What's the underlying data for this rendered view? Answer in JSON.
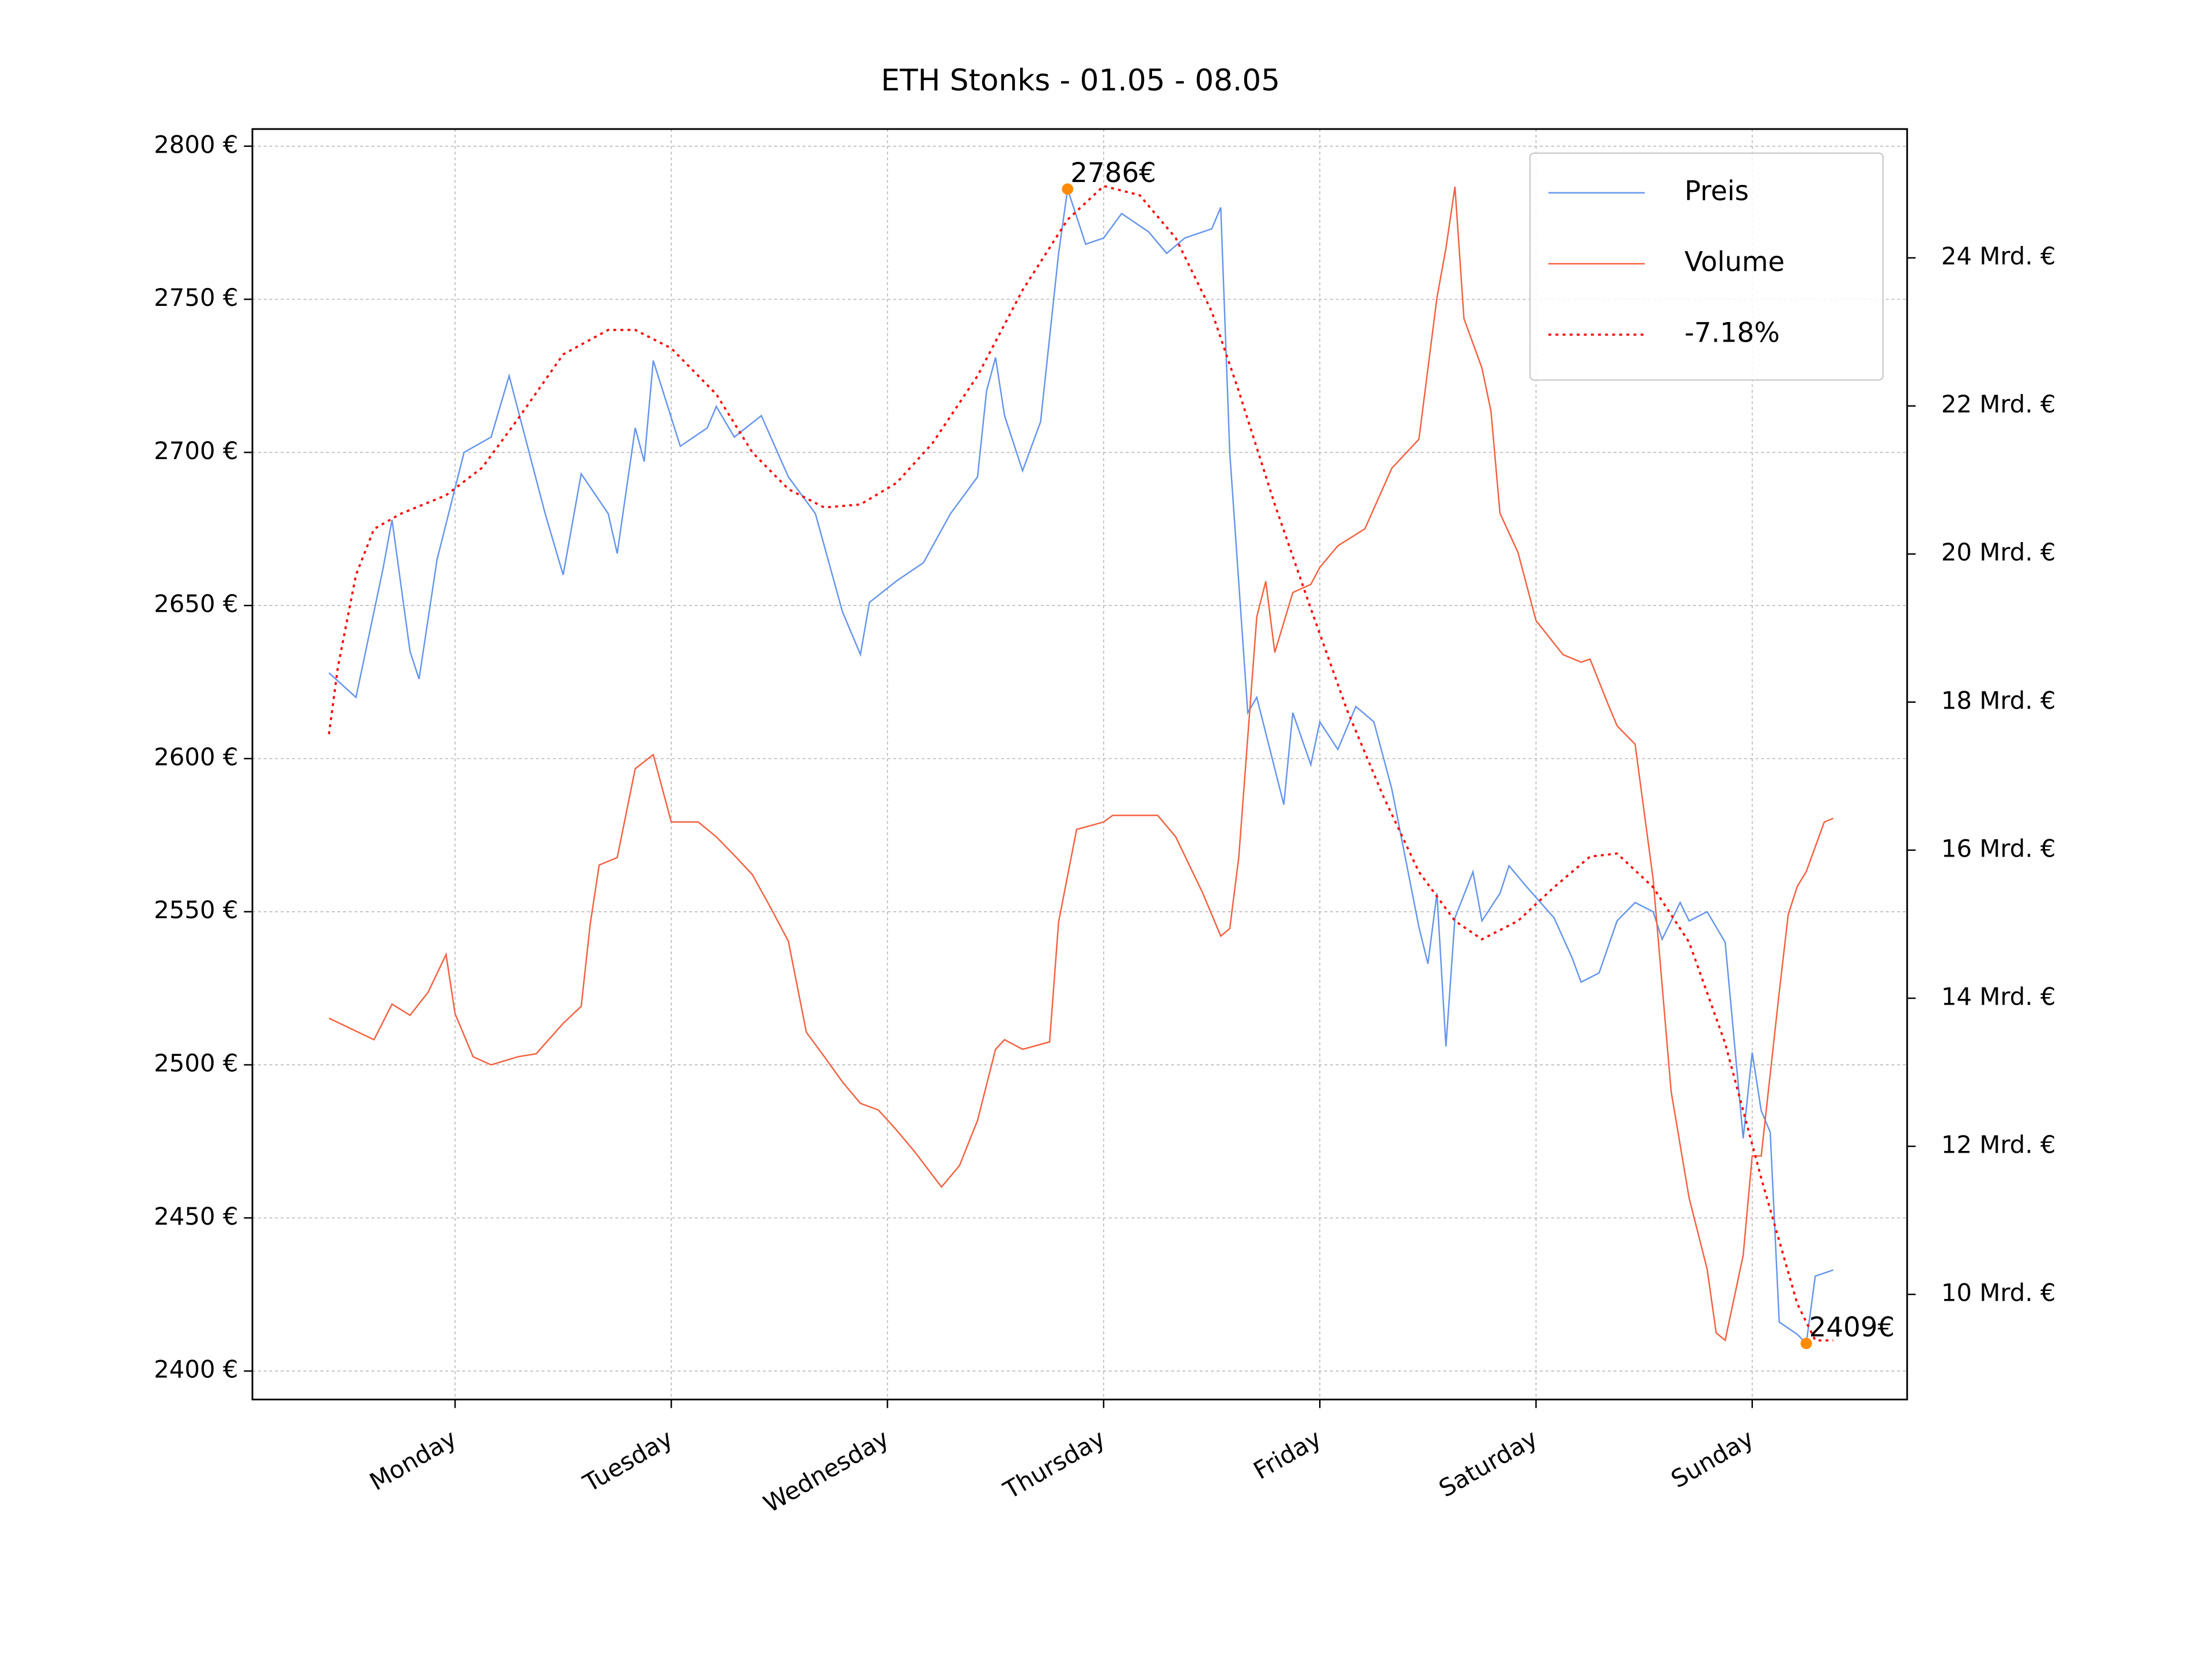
{
  "chart_data": {
    "type": "line",
    "title": "ETH Stonks - 01.05 - 08.05",
    "xlim": [
      -8.5,
      175.2
    ],
    "xticks": [
      {
        "value": 14,
        "label": "Monday"
      },
      {
        "value": 38,
        "label": "Tuesday"
      },
      {
        "value": 62,
        "label": "Wednesday"
      },
      {
        "value": 86,
        "label": "Thursday"
      },
      {
        "value": 110,
        "label": "Friday"
      },
      {
        "value": 134,
        "label": "Saturday"
      },
      {
        "value": 158,
        "label": "Sunday"
      }
    ],
    "ylim": [
      2390.7,
      2805.6
    ],
    "yticks": [
      {
        "value": 2400,
        "label": "2400 €"
      },
      {
        "value": 2450,
        "label": "2450 €"
      },
      {
        "value": 2500,
        "label": "2500 €"
      },
      {
        "value": 2550,
        "label": "2550 €"
      },
      {
        "value": 2600,
        "label": "2600 €"
      },
      {
        "value": 2650,
        "label": "2650 €"
      },
      {
        "value": 2700,
        "label": "2700 €"
      },
      {
        "value": 2750,
        "label": "2750 €"
      },
      {
        "value": 2800,
        "label": "2800 €"
      }
    ],
    "y2lim": [
      8.58,
      25.74
    ],
    "y2ticks": [
      {
        "value": 10,
        "label": "10 Mrd. €"
      },
      {
        "value": 12,
        "label": "12 Mrd. €"
      },
      {
        "value": 14,
        "label": "14 Mrd. €"
      },
      {
        "value": 16,
        "label": "16 Mrd. €"
      },
      {
        "value": 18,
        "label": "18 Mrd. €"
      },
      {
        "value": 20,
        "label": "20 Mrd. €"
      },
      {
        "value": 22,
        "label": "22 Mrd. €"
      },
      {
        "value": 24,
        "label": "24 Mrd. €"
      }
    ],
    "grid": true,
    "legend": "upper right",
    "series": [
      {
        "name": "Preis",
        "color": "#6495ed",
        "linestyle": "solid",
        "x": [
          0,
          3,
          6,
          7,
          9,
          10,
          12,
          15,
          18,
          20,
          24,
          26,
          28,
          31,
          32,
          34,
          35,
          36,
          39,
          42,
          43,
          45,
          48,
          51,
          54,
          57,
          59,
          60,
          63,
          66,
          69,
          72,
          73,
          74,
          75,
          77,
          79,
          81,
          82,
          84,
          86,
          88,
          91,
          93,
          95,
          98,
          99,
          100,
          102,
          103,
          106,
          107,
          109,
          110,
          112,
          114,
          116,
          118,
          121,
          122,
          123,
          124,
          125,
          127,
          128,
          130,
          131,
          133,
          136,
          138,
          139,
          141,
          143,
          145,
          147,
          148,
          150,
          151,
          153,
          155,
          157,
          158,
          159,
          160,
          161,
          163,
          164,
          165,
          167
        ],
        "values": [
          2628,
          2620,
          2662,
          2678,
          2635,
          2626,
          2665,
          2700,
          2705,
          2725,
          2680,
          2660,
          2693,
          2680,
          2667,
          2708,
          2697,
          2730,
          2702,
          2708,
          2715,
          2705,
          2712,
          2692,
          2680,
          2648,
          2634,
          2651,
          2658,
          2664,
          2680,
          2692,
          2720,
          2731,
          2712,
          2694,
          2710,
          2765,
          2786,
          2768,
          2770,
          2778,
          2772,
          2765,
          2770,
          2773,
          2780,
          2700,
          2615,
          2620,
          2585,
          2615,
          2598,
          2612,
          2603,
          2617,
          2612,
          2590,
          2545,
          2533,
          2556,
          2506,
          2548,
          2563,
          2547,
          2556,
          2565,
          2558,
          2548,
          2535,
          2527,
          2530,
          2547,
          2553,
          2550,
          2541,
          2553,
          2547,
          2550,
          2540,
          2476,
          2504,
          2485,
          2478,
          2416,
          2412,
          2409,
          2431,
          2433
        ]
      },
      {
        "name": "Volume",
        "color": "#f4603f",
        "linestyle": "solid",
        "axis": "y2",
        "x": [
          0,
          5,
          7,
          9,
          11,
          13,
          14,
          16,
          18,
          21,
          23,
          26,
          28,
          29,
          30,
          32,
          34,
          36,
          38,
          41,
          43,
          45,
          47,
          49,
          51,
          53,
          55,
          57,
          59,
          61,
          63,
          65,
          68,
          70,
          72,
          74,
          75,
          77,
          80,
          81,
          83,
          86,
          87,
          90,
          92,
          94,
          97,
          99,
          100,
          101,
          103,
          104,
          105,
          107,
          109,
          110,
          112,
          115,
          118,
          121,
          123,
          124,
          125,
          126,
          128,
          129,
          130,
          132,
          134,
          137,
          139,
          140,
          142,
          143,
          145,
          147,
          149,
          151,
          153,
          154,
          155,
          157,
          158,
          159,
          161,
          162,
          163,
          164,
          166,
          167
        ],
        "values": [
          13.73,
          13.44,
          13.92,
          13.77,
          14.08,
          14.59,
          13.79,
          13.21,
          13.1,
          13.21,
          13.25,
          13.66,
          13.89,
          15.0,
          15.8,
          15.9,
          17.1,
          17.29,
          16.38,
          16.38,
          16.18,
          15.93,
          15.67,
          15.23,
          14.77,
          13.54,
          13.21,
          12.87,
          12.58,
          12.49,
          12.22,
          11.93,
          11.45,
          11.74,
          12.35,
          13.31,
          13.44,
          13.31,
          13.41,
          15.03,
          16.28,
          16.38,
          16.47,
          16.47,
          16.47,
          16.18,
          15.42,
          14.84,
          14.94,
          15.9,
          19.15,
          19.63,
          18.67,
          19.48,
          19.59,
          19.82,
          20.11,
          20.34,
          21.16,
          21.55,
          23.46,
          24.13,
          24.96,
          23.18,
          22.51,
          21.93,
          20.55,
          20.02,
          19.1,
          18.64,
          18.54,
          18.58,
          17.97,
          17.68,
          17.43,
          15.61,
          12.74,
          11.3,
          10.34,
          9.48,
          9.38,
          10.53,
          11.87,
          11.87,
          14.08,
          15.13,
          15.51,
          15.71,
          16.38,
          16.43
        ]
      },
      {
        "name": "-7.18%",
        "color": "#ff0000",
        "linestyle": "dotted",
        "x": [
          0,
          1,
          3,
          5,
          8,
          13,
          17,
          21,
          26,
          31,
          34,
          38,
          43,
          47,
          51,
          55,
          59,
          63,
          67,
          72,
          77,
          82,
          86,
          90,
          94,
          98,
          101,
          105,
          109,
          113,
          117,
          121,
          125,
          128,
          132,
          136,
          140,
          143,
          147,
          151,
          155,
          159,
          163,
          165,
          167
        ],
        "values": [
          2608,
          2630,
          2660,
          2675,
          2680,
          2686,
          2695,
          2711,
          2732,
          2740,
          2740,
          2734,
          2719,
          2700,
          2688,
          2682,
          2683,
          2690,
          2703,
          2725,
          2753,
          2776,
          2787,
          2784,
          2770,
          2746,
          2720,
          2683,
          2649,
          2616,
          2588,
          2563,
          2547,
          2541,
          2547,
          2558,
          2568,
          2569,
          2558,
          2540,
          2507,
          2463,
          2422,
          2410,
          2410
        ]
      }
    ],
    "annotations": [
      {
        "x": 82,
        "value": 2786,
        "label": "2786€",
        "color": "#ff8c00"
      },
      {
        "x": 164,
        "value": 2409,
        "label": "2409€",
        "color": "#ff8c00"
      }
    ]
  }
}
